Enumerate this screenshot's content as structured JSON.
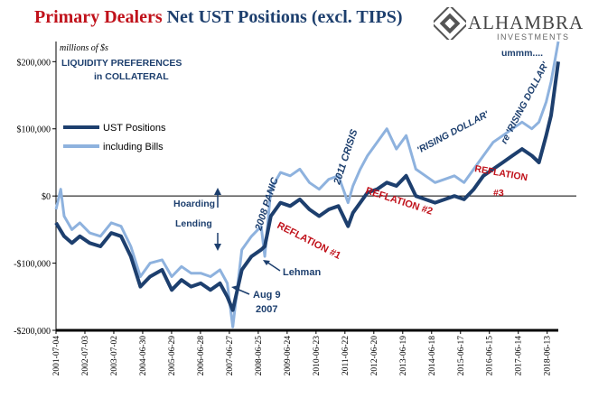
{
  "title_part1": "Primary Dealers",
  "title_part2": "Net UST Positions (excl. TIPS)",
  "logo": {
    "name": "ALHAMBRA",
    "sub": "INVESTMENTS"
  },
  "colors": {
    "ust": "#1d3f6e",
    "bills": "#8eb2de",
    "red": "#c0111a",
    "annotation": "#1d3f6e"
  },
  "chart_data": {
    "type": "line",
    "units_note": "millions of $s",
    "ylim": [
      -200000,
      230000
    ],
    "yticks": [
      200000,
      100000,
      0,
      -100000,
      -200000
    ],
    "ytick_labels": [
      "$200,000",
      "$100,000",
      "$0",
      "-$100,000",
      "-$200,000"
    ],
    "xlim": [
      "2001-07-04",
      "2018-10-31"
    ],
    "xtick_labels": [
      "2001-07-04",
      "2002-07-03",
      "2003-07-02",
      "2004-06-30",
      "2005-06-29",
      "2006-06-28",
      "2007-06-27",
      "2008-06-25",
      "2009-06-24",
      "2010-06-23",
      "2011-06-22",
      "2012-06-20",
      "2013-06-19",
      "2014-06-18",
      "2015-06-17",
      "2016-06-15",
      "2017-06-14",
      "2018-06-13"
    ],
    "legend": {
      "position": "upper-left",
      "entries": [
        "UST Positions",
        "including Bills"
      ]
    },
    "series": [
      {
        "name": "UST Positions",
        "x": [
          "2001-07-04",
          "2001-10-15",
          "2002-01-20",
          "2002-05-01",
          "2002-09-01",
          "2003-01-15",
          "2003-06-01",
          "2003-10-01",
          "2004-02-01",
          "2004-06-01",
          "2004-10-01",
          "2005-03-01",
          "2005-07-01",
          "2005-11-01",
          "2006-03-01",
          "2006-07-01",
          "2006-11-01",
          "2007-03-01",
          "2007-06-01",
          "2007-08-09",
          "2007-12-01",
          "2008-04-01",
          "2008-08-01",
          "2008-09-15",
          "2008-12-01",
          "2009-04-01",
          "2009-08-01",
          "2009-12-01",
          "2010-04-01",
          "2010-08-01",
          "2010-12-01",
          "2011-04-01",
          "2011-08-01",
          "2011-10-01",
          "2012-01-01",
          "2012-04-01",
          "2012-08-01",
          "2012-12-01",
          "2013-04-01",
          "2013-08-01",
          "2013-12-01",
          "2014-04-01",
          "2014-08-01",
          "2014-12-01",
          "2015-04-01",
          "2015-08-01",
          "2015-12-01",
          "2016-04-01",
          "2016-08-01",
          "2016-12-01",
          "2017-04-01",
          "2017-08-01",
          "2017-12-01",
          "2018-03-01",
          "2018-06-01",
          "2018-08-01",
          "2018-10-31"
        ],
        "y": [
          -40000,
          -60000,
          -70000,
          -60000,
          -70000,
          -75000,
          -55000,
          -60000,
          -90000,
          -135000,
          -120000,
          -110000,
          -140000,
          -125000,
          -135000,
          -130000,
          -140000,
          -130000,
          -150000,
          -170000,
          -110000,
          -90000,
          -80000,
          -75000,
          -30000,
          -10000,
          -15000,
          -5000,
          -20000,
          -30000,
          -20000,
          -15000,
          -45000,
          -25000,
          -10000,
          5000,
          10000,
          20000,
          15000,
          30000,
          0,
          -5000,
          -10000,
          -5000,
          0,
          -5000,
          10000,
          30000,
          40000,
          50000,
          60000,
          70000,
          60000,
          50000,
          90000,
          120000,
          200000
        ]
      },
      {
        "name": "including Bills",
        "x": [
          "2001-07-04",
          "2001-09-01",
          "2001-10-15",
          "2002-01-20",
          "2002-05-01",
          "2002-09-01",
          "2003-01-15",
          "2003-06-01",
          "2003-10-01",
          "2004-02-01",
          "2004-06-01",
          "2004-10-01",
          "2005-03-01",
          "2005-07-01",
          "2005-11-01",
          "2006-03-01",
          "2006-07-01",
          "2006-11-01",
          "2007-03-01",
          "2007-06-01",
          "2007-08-09",
          "2007-12-01",
          "2008-04-01",
          "2008-08-01",
          "2008-09-15",
          "2008-12-01",
          "2009-04-01",
          "2009-08-01",
          "2009-12-01",
          "2010-04-01",
          "2010-08-01",
          "2010-12-01",
          "2011-04-01",
          "2011-08-01",
          "2011-10-01",
          "2012-01-01",
          "2012-04-01",
          "2012-08-01",
          "2012-12-01",
          "2013-04-01",
          "2013-08-01",
          "2013-12-01",
          "2014-04-01",
          "2014-08-01",
          "2014-12-01",
          "2015-04-01",
          "2015-08-01",
          "2015-12-01",
          "2016-04-01",
          "2016-08-01",
          "2016-12-01",
          "2017-04-01",
          "2017-08-01",
          "2017-12-01",
          "2018-03-01",
          "2018-06-01",
          "2018-08-01",
          "2018-10-31"
        ],
        "y": [
          -20000,
          10000,
          -30000,
          -50000,
          -40000,
          -55000,
          -60000,
          -40000,
          -45000,
          -75000,
          -120000,
          -100000,
          -95000,
          -120000,
          -105000,
          -115000,
          -115000,
          -120000,
          -110000,
          -130000,
          -195000,
          -80000,
          -60000,
          -45000,
          -90000,
          10000,
          35000,
          30000,
          40000,
          20000,
          10000,
          25000,
          30000,
          -10000,
          15000,
          40000,
          60000,
          80000,
          100000,
          70000,
          90000,
          40000,
          30000,
          20000,
          25000,
          30000,
          20000,
          40000,
          60000,
          80000,
          90000,
          100000,
          110000,
          100000,
          110000,
          140000,
          170000,
          230000
        ]
      }
    ],
    "annotations": [
      {
        "text": "LIQUIDITY PREFERENCES",
        "kind": "label"
      },
      {
        "text": "in COLLATERAL",
        "kind": "label"
      },
      {
        "text": "Hoarding",
        "kind": "label"
      },
      {
        "text": "Lending",
        "kind": "label"
      },
      {
        "text": "Lehman",
        "kind": "label"
      },
      {
        "text": "Aug 9",
        "kind": "label"
      },
      {
        "text": "2007",
        "kind": "label"
      },
      {
        "text": "2008 PANIC",
        "kind": "label"
      },
      {
        "text": "2011 CRISIS",
        "kind": "label"
      },
      {
        "text": "REFLATION #1",
        "kind": "red"
      },
      {
        "text": "REFLATION #2",
        "kind": "red"
      },
      {
        "text": "REFLATION",
        "kind": "red"
      },
      {
        "text": "#3",
        "kind": "red"
      },
      {
        "text": "'RISING DOLLAR'",
        "kind": "label"
      },
      {
        "text": "re 'RISING DOLLAR'",
        "kind": "label"
      },
      {
        "text": "ummm....",
        "kind": "label"
      }
    ]
  }
}
